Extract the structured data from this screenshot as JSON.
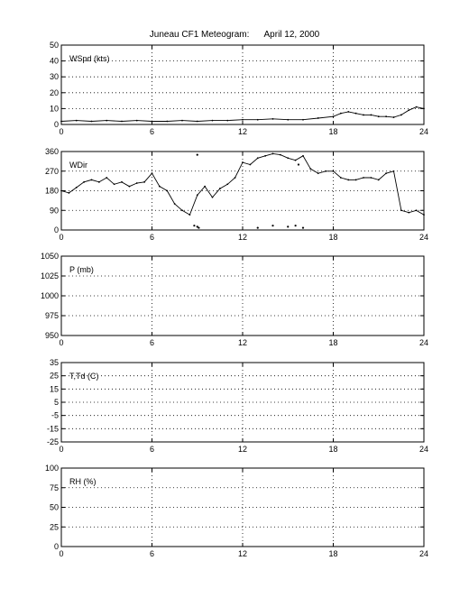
{
  "title": "Juneau CF1 Meteogram:      April 12, 2000",
  "chart_data": [
    {
      "type": "scatter",
      "panel_label": "WSpd (kts)",
      "xlim": [
        0,
        24
      ],
      "x_ticks": [
        0,
        6,
        12,
        18,
        24
      ],
      "ylim": [
        0,
        50
      ],
      "y_ticks": [
        0,
        10,
        20,
        30,
        40,
        50
      ],
      "grid": true,
      "x": [
        0,
        1,
        2,
        3,
        4,
        5,
        6,
        7,
        8,
        9,
        10,
        11,
        12,
        13,
        14,
        15,
        16,
        17,
        18,
        18.5,
        19,
        19.5,
        20,
        20.5,
        21,
        21.5,
        22,
        22.5,
        23,
        23.5,
        24
      ],
      "y": [
        2,
        2.5,
        2,
        2.5,
        2,
        2.5,
        2,
        2,
        2.5,
        2,
        2.5,
        2.5,
        3,
        3,
        3.5,
        3,
        3,
        4,
        5,
        7,
        8,
        7,
        6,
        6,
        5,
        5,
        4.5,
        6,
        9,
        11,
        10
      ]
    },
    {
      "type": "scatter",
      "panel_label": "WDir",
      "xlim": [
        0,
        24
      ],
      "x_ticks": [
        0,
        6,
        12,
        18,
        24
      ],
      "ylim": [
        0,
        360
      ],
      "y_ticks": [
        0,
        90,
        180,
        270,
        360
      ],
      "grid": true,
      "x": [
        0,
        0.5,
        1,
        1.5,
        2,
        2.5,
        3,
        3.5,
        4,
        4.5,
        5,
        5.5,
        6,
        6.5,
        7,
        7.5,
        8,
        8.5,
        9,
        9.5,
        10,
        10.5,
        11,
        11.5,
        12,
        12.5,
        13,
        13.5,
        14,
        14.5,
        15,
        15.5,
        16,
        16.5,
        17,
        17.5,
        18,
        18.5,
        19,
        19.5,
        20,
        20.5,
        21,
        21.5,
        22,
        22.5,
        23,
        23.5,
        24
      ],
      "y": [
        180,
        170,
        195,
        220,
        230,
        220,
        240,
        210,
        220,
        200,
        215,
        220,
        260,
        200,
        180,
        120,
        90,
        70,
        160,
        200,
        150,
        190,
        210,
        240,
        310,
        300,
        330,
        340,
        350,
        345,
        330,
        320,
        340,
        280,
        260,
        270,
        270,
        240,
        230,
        230,
        240,
        240,
        230,
        260,
        270,
        90,
        80,
        90,
        70
      ],
      "x2": [
        8.8,
        9.0,
        9.1,
        13.0,
        14.0,
        15.0,
        15.5,
        16.0,
        9.0,
        15.7
      ],
      "y2": [
        20,
        15,
        10,
        10,
        20,
        15,
        20,
        10,
        345,
        300
      ]
    },
    {
      "type": "scatter",
      "panel_label": "P (mb)",
      "xlim": [
        0,
        24
      ],
      "x_ticks": [
        0,
        6,
        12,
        18,
        24
      ],
      "ylim": [
        950,
        1050
      ],
      "y_ticks": [
        950,
        975,
        1000,
        1025,
        1050
      ],
      "grid": true,
      "x": [],
      "y": []
    },
    {
      "type": "scatter",
      "panel_label": "T,Td (C)",
      "xlim": [
        0,
        24
      ],
      "x_ticks": [
        0,
        6,
        12,
        18,
        24
      ],
      "ylim": [
        -25,
        35
      ],
      "y_ticks": [
        -25,
        -15,
        -5,
        5,
        15,
        25,
        35
      ],
      "grid": true,
      "x": [],
      "y": []
    },
    {
      "type": "scatter",
      "panel_label": "RH (%)",
      "xlim": [
        0,
        24
      ],
      "x_ticks": [
        0,
        6,
        12,
        18,
        24
      ],
      "ylim": [
        0,
        100
      ],
      "y_ticks": [
        0,
        25,
        50,
        75,
        100
      ],
      "grid": true,
      "x": [],
      "y": []
    }
  ]
}
